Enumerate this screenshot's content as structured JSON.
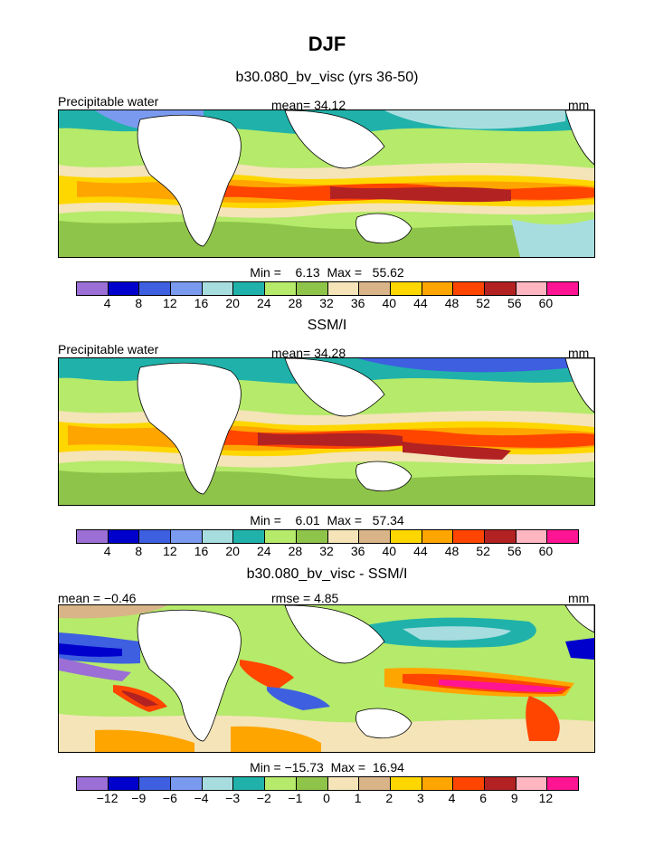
{
  "figure": {
    "season": "DJF",
    "panels": [
      {
        "title": "b30.080_bv_visc (yrs 36-50)",
        "left_label": "Precipitable water",
        "center_label": "mean=  34.12",
        "right_label": "mm",
        "min_max": "Min =    6.13  Max =   55.62",
        "colorbar_ticks": [
          "4",
          "8",
          "12",
          "16",
          "20",
          "24",
          "28",
          "32",
          "36",
          "40",
          "44",
          "48",
          "52",
          "56",
          "60"
        ],
        "palette": "abs"
      },
      {
        "title": "SSM/I",
        "left_label": "Precipitable water",
        "center_label": "mean=  34.28",
        "right_label": "mm",
        "min_max": "Min =    6.01  Max =   57.34",
        "colorbar_ticks": [
          "4",
          "8",
          "12",
          "16",
          "20",
          "24",
          "28",
          "32",
          "36",
          "40",
          "44",
          "48",
          "52",
          "56",
          "60"
        ],
        "palette": "abs"
      },
      {
        "title": "b30.080_bv_visc - SSM/I",
        "left_label": "mean = −0.46",
        "center_label": "rmse =   4.85",
        "right_label": "mm",
        "min_max": "Min = −15.73  Max =  16.94",
        "colorbar_ticks": [
          "−12",
          "−9",
          "−6",
          "−4",
          "−3",
          "−2",
          "−1",
          "0",
          "1",
          "2",
          "3",
          "4",
          "6",
          "9",
          "12"
        ],
        "palette": "abs"
      }
    ]
  },
  "chart_data": [
    {
      "type": "heatmap",
      "title": "b30.080_bv_visc (yrs 36-50)",
      "variable": "Precipitable water",
      "units": "mm",
      "mean": 34.12,
      "min": 6.13,
      "max": 55.62,
      "levels": [
        4,
        8,
        12,
        16,
        20,
        24,
        28,
        32,
        36,
        40,
        44,
        48,
        52,
        56,
        60
      ]
    },
    {
      "type": "heatmap",
      "title": "SSM/I",
      "variable": "Precipitable water",
      "units": "mm",
      "mean": 34.28,
      "min": 6.01,
      "max": 57.34,
      "levels": [
        4,
        8,
        12,
        16,
        20,
        24,
        28,
        32,
        36,
        40,
        44,
        48,
        52,
        56,
        60
      ]
    },
    {
      "type": "heatmap",
      "title": "b30.080_bv_visc - SSM/I",
      "units": "mm",
      "mean": -0.46,
      "rmse": 4.85,
      "min": -15.73,
      "max": 16.94,
      "levels": [
        -12,
        -9,
        -6,
        -4,
        -3,
        -2,
        -1,
        0,
        1,
        2,
        3,
        4,
        6,
        9,
        12
      ]
    }
  ],
  "colors": {
    "palette": [
      "#9b6fd6",
      "#0000cc",
      "#3d5fe0",
      "#7a9af0",
      "#a8dde0",
      "#20b2aa",
      "#b5ea6a",
      "#8fc44a",
      "#f4e4b8",
      "#d8b488",
      "#ffd700",
      "#ffa500",
      "#ff4500",
      "#b22222",
      "#ffb6c1",
      "#ff1493"
    ],
    "land": "#ffffff",
    "frame": "#000000"
  }
}
